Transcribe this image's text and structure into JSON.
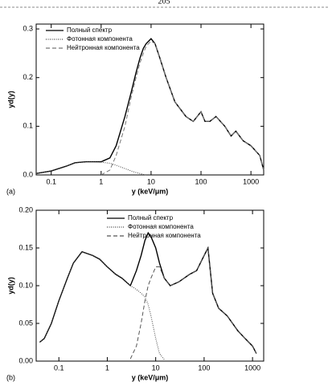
{
  "page_number": "205",
  "chart_data": [
    {
      "type": "line",
      "panel_label": "(a)",
      "xlabel": "y (keV/μm)",
      "ylabel": "yd(y)",
      "xscale": "log",
      "xlim": [
        0.05,
        1800
      ],
      "ylim": [
        0,
        0.31
      ],
      "xticks": [
        0.1,
        1,
        10,
        100,
        1000
      ],
      "yticks": [
        {
          "value": 0,
          "label": "0.0"
        },
        0.1,
        0.2,
        0.3
      ],
      "legend": "upper left",
      "x": [
        0.05,
        0.1,
        0.2,
        0.3,
        0.5,
        0.7,
        1,
        1.5,
        2,
        3,
        4,
        5,
        6,
        7,
        8,
        10,
        12,
        15,
        20,
        30,
        50,
        70,
        100,
        120,
        150,
        200,
        300,
        400,
        500,
        700,
        1000,
        1500,
        1800
      ],
      "series": [
        {
          "name": "Полный спектр",
          "color": "#000000",
          "dash": "solid",
          "values": [
            0.003,
            0.008,
            0.018,
            0.025,
            0.027,
            0.027,
            0.027,
            0.035,
            0.06,
            0.12,
            0.17,
            0.21,
            0.24,
            0.26,
            0.27,
            0.28,
            0.27,
            0.24,
            0.2,
            0.15,
            0.12,
            0.11,
            0.13,
            0.11,
            0.11,
            0.12,
            0.1,
            0.08,
            0.09,
            0.07,
            0.06,
            0.04,
            0.01
          ]
        },
        {
          "name": "Фотонная компонента",
          "color": "#444444",
          "dash": "dotted",
          "values": [
            0.003,
            0.008,
            0.018,
            0.025,
            0.027,
            0.027,
            0.026,
            0.024,
            0.02,
            0.013,
            0.008,
            0.005,
            0.003,
            0.001,
            0,
            null,
            null,
            null,
            null,
            null,
            null,
            null,
            null,
            null,
            null,
            null,
            null,
            null,
            null,
            null,
            null,
            null,
            null
          ]
        },
        {
          "name": "Нейтронная компонента",
          "color": "#777777",
          "dash": "dashed",
          "values": [
            null,
            null,
            null,
            null,
            null,
            null,
            0,
            0.01,
            0.04,
            0.1,
            0.16,
            0.2,
            0.23,
            0.25,
            0.265,
            0.275,
            0.27,
            0.24,
            0.2,
            0.15,
            0.12,
            0.11,
            0.13,
            0.11,
            0.11,
            0.12,
            0.1,
            0.08,
            0.09,
            0.07,
            0.06,
            0.04,
            0.01
          ]
        }
      ]
    },
    {
      "type": "line",
      "panel_label": "(b)",
      "xlabel": "y (keV/μm)",
      "ylabel": "yd(y)",
      "xscale": "log",
      "xlim": [
        0.034,
        1700
      ],
      "ylim": [
        0,
        0.2
      ],
      "xticks": [
        0.1,
        1,
        10,
        100,
        1000
      ],
      "yticks": [
        {
          "value": 0,
          "label": "0.00"
        },
        0.05,
        {
          "value": 0.1,
          "label": "0.10"
        },
        0.15,
        {
          "value": 0.2,
          "label": "0.20"
        }
      ],
      "legend": "upper center",
      "x": [
        0.04,
        0.05,
        0.07,
        0.1,
        0.15,
        0.2,
        0.3,
        0.5,
        0.7,
        1,
        1.5,
        2,
        3,
        4,
        5,
        6,
        7,
        8,
        10,
        12,
        15,
        20,
        30,
        50,
        70,
        100,
        120,
        150,
        200,
        300,
        500,
        700,
        1000,
        1200
      ],
      "series": [
        {
          "name": "Полный спектр",
          "color": "#000000",
          "dash": "solid",
          "values": [
            0.025,
            0.03,
            0.05,
            0.08,
            0.11,
            0.13,
            0.145,
            0.14,
            0.135,
            0.125,
            0.115,
            0.11,
            0.1,
            0.12,
            0.14,
            0.16,
            0.17,
            0.165,
            0.15,
            0.13,
            0.11,
            0.1,
            0.105,
            0.115,
            0.12,
            0.14,
            0.15,
            0.09,
            0.07,
            0.06,
            0.04,
            0.03,
            0.02,
            0.01
          ]
        },
        {
          "name": "Фотонная компонента",
          "color": "#444444",
          "dash": "dotted",
          "values": [
            0.025,
            0.03,
            0.05,
            0.08,
            0.11,
            0.13,
            0.145,
            0.14,
            0.135,
            0.125,
            0.115,
            0.11,
            0.1,
            0.095,
            0.09,
            0.085,
            0.075,
            0.06,
            0.03,
            0.01,
            0.002,
            null,
            null,
            null,
            null,
            null,
            null,
            null,
            null,
            null,
            null,
            null,
            null,
            null
          ]
        },
        {
          "name": "Нейтронная компонента",
          "color": "#555555",
          "dash": "dashed",
          "values": [
            null,
            null,
            null,
            null,
            null,
            null,
            null,
            null,
            null,
            null,
            null,
            null,
            0.003,
            0.02,
            0.05,
            0.08,
            0.1,
            0.11,
            0.125,
            0.125,
            0.11,
            0.1,
            0.105,
            0.115,
            0.12,
            0.14,
            0.15,
            0.09,
            0.07,
            0.06,
            0.04,
            0.03,
            0.02,
            0.01
          ]
        }
      ]
    }
  ]
}
